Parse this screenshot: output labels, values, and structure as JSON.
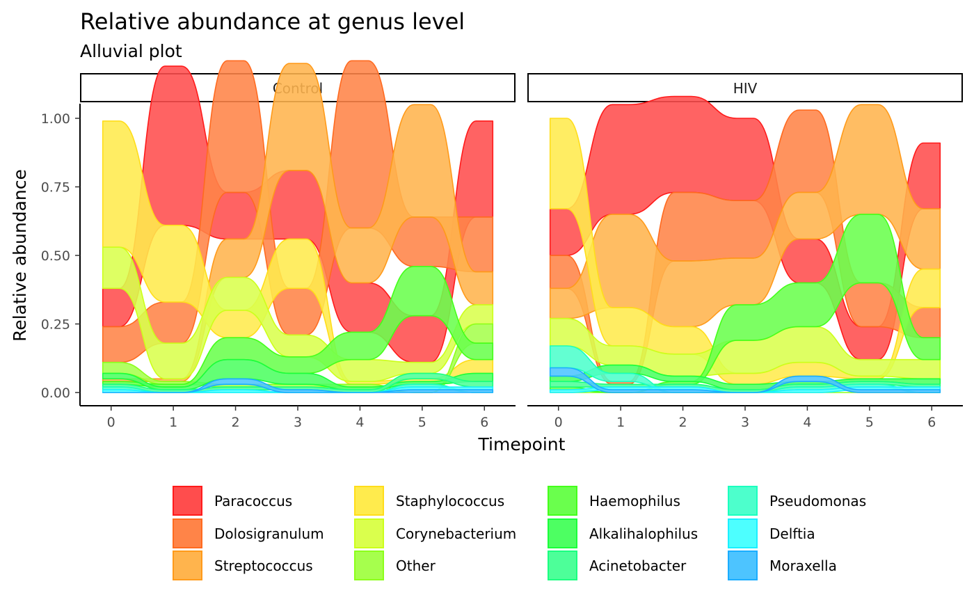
{
  "chart_data": {
    "type": "area",
    "title": "Relative abundance at genus level",
    "subtitle": "Alluvial plot",
    "xlabel": "Timepoint",
    "ylabel": "Relative abundance",
    "x": [
      0,
      1,
      2,
      3,
      4,
      5,
      6
    ],
    "x_tick_labels": [
      "0",
      "1",
      "2",
      "3",
      "4",
      "5",
      "6"
    ],
    "ylim": [
      0,
      1
    ],
    "y_tick_labels": [
      "0.00",
      "0.25",
      "0.50",
      "0.75",
      "1.00"
    ],
    "y_ticks": [
      0,
      0.25,
      0.5,
      0.75,
      1.0
    ],
    "legend_position": "bottom",
    "genera": [
      {
        "name": "Paracoccus",
        "fill": "#FF4D4D",
        "stroke": "#FF1A1A"
      },
      {
        "name": "Dolosigranulum",
        "fill": "#FF8448",
        "stroke": "#FF6A1F"
      },
      {
        "name": "Streptococcus",
        "fill": "#FFB44D",
        "stroke": "#FF9A1A"
      },
      {
        "name": "Staphylococcus",
        "fill": "#FFEB4D",
        "stroke": "#FFDD1A"
      },
      {
        "name": "Corynebacterium",
        "fill": "#DAFF4D",
        "stroke": "#CCFF1A"
      },
      {
        "name": "Other",
        "fill": "#A6FF4D",
        "stroke": "#8CFF1A"
      },
      {
        "name": "Haemophilus",
        "fill": "#6AFF4D",
        "stroke": "#44FF1A"
      },
      {
        "name": "Alkalihalophilus",
        "fill": "#4DFF62",
        "stroke": "#1AFF3A"
      },
      {
        "name": "Acinetobacter",
        "fill": "#4DFF99",
        "stroke": "#1AFF80"
      },
      {
        "name": "Pseudomonas",
        "fill": "#4DFFCC",
        "stroke": "#1AFFBF"
      },
      {
        "name": "Delftia",
        "fill": "#4DFFFF",
        "stroke": "#1AF0FF"
      },
      {
        "name": "Moraxella",
        "fill": "#4DC4FF",
        "stroke": "#1AADFF"
      }
    ],
    "facets": [
      {
        "name": "Control",
        "series": {
          "Paracoccus": [
            0.14,
            0.58,
            0.17,
            0.25,
            0.18,
            0.17,
            0.35
          ],
          "Dolosigranulum": [
            0.13,
            0.15,
            0.48,
            0.17,
            0.61,
            0.18,
            0.2
          ],
          "Streptococcus": [
            0.01,
            0.01,
            0.14,
            0.39,
            0.2,
            0.41,
            0.12
          ],
          "Staphylococcus": [
            0.46,
            0.28,
            0.1,
            0.18,
            0.01,
            0.01,
            0.05
          ],
          "Corynebacterium": [
            0.15,
            0.13,
            0.12,
            0.08,
            0.08,
            0.04,
            0.07
          ],
          "Other": [
            0.04,
            0.01,
            0.01,
            0.01,
            0.01,
            0.0,
            0.07
          ],
          "Haemophilus": [
            0.01,
            0.01,
            0.08,
            0.06,
            0.1,
            0.18,
            0.06
          ],
          "Alkalihalophilus": [
            0.02,
            0.01,
            0.07,
            0.04,
            0.01,
            0.01,
            0.03
          ],
          "Acinetobacter": [
            0.01,
            0.01,
            0.01,
            0.01,
            0.01,
            0.02,
            0.02
          ],
          "Pseudomonas": [
            0.01,
            0.0,
            0.0,
            0.0,
            0.0,
            0.01,
            0.0
          ],
          "Delftia": [
            0.01,
            0.0,
            0.01,
            0.0,
            0.0,
            0.01,
            0.01
          ],
          "Moraxella": [
            0.0,
            0.0,
            0.02,
            0.01,
            0.0,
            0.01,
            0.01
          ]
        }
      },
      {
        "name": "HIV",
        "series": {
          "Paracoccus": [
            0.17,
            0.4,
            0.35,
            0.3,
            0.16,
            0.12,
            0.24
          ],
          "Dolosigranulum": [
            0.12,
            0.01,
            0.25,
            0.21,
            0.3,
            0.16,
            0.11
          ],
          "Streptococcus": [
            0.11,
            0.34,
            0.24,
            0.17,
            0.17,
            0.4,
            0.22
          ],
          "Staphylococcus": [
            0.33,
            0.14,
            0.1,
            0.04,
            0.05,
            0.01,
            0.14
          ],
          "Corynebacterium": [
            0.1,
            0.07,
            0.08,
            0.12,
            0.13,
            0.06,
            0.07
          ],
          "Other": [
            0.0,
            0.0,
            0.0,
            0.0,
            0.0,
            0.0,
            0.0
          ],
          "Haemophilus": [
            0.01,
            0.0,
            0.01,
            0.13,
            0.16,
            0.25,
            0.08
          ],
          "Alkalihalophilus": [
            0.02,
            0.03,
            0.02,
            0.02,
            0.01,
            0.01,
            0.02
          ],
          "Acinetobacter": [
            0.02,
            0.01,
            0.01,
            0.01,
            0.01,
            0.01,
            0.01
          ],
          "Pseudomonas": [
            0.08,
            0.03,
            0.0,
            0.0,
            0.01,
            0.01,
            0.0
          ],
          "Delftia": [
            0.01,
            0.01,
            0.01,
            0.0,
            0.01,
            0.01,
            0.01
          ],
          "Moraxella": [
            0.03,
            0.01,
            0.01,
            0.0,
            0.02,
            0.01,
            0.01
          ]
        }
      }
    ]
  }
}
